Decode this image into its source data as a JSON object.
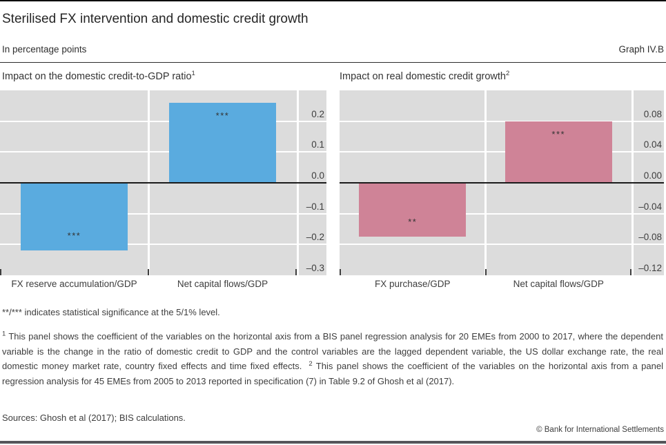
{
  "header": {
    "title": "Sterilised FX intervention and domestic credit growth",
    "unit": "In percentage points",
    "graph_label": "Graph IV.B"
  },
  "chart_data": [
    {
      "type": "bar",
      "title": "Impact on the domestic credit-to-GDP ratio",
      "title_sup": "1",
      "categories": [
        "FX reserve accumulation/GDP",
        "Net capital flows/GDP"
      ],
      "values": [
        -0.22,
        0.26
      ],
      "significance": [
        "***",
        "***"
      ],
      "bar_color": "#5aabdf",
      "ylim": [
        -0.3,
        0.3
      ],
      "yticks": [
        0.2,
        0.1,
        0.0,
        -0.1,
        -0.2,
        -0.3
      ],
      "ytick_labels": [
        "0.2",
        "0.1",
        "0.0",
        "–0.1",
        "–0.2",
        "–0.3"
      ],
      "grid": true,
      "legend_position": "none"
    },
    {
      "type": "bar",
      "title": "Impact on real domestic credit growth",
      "title_sup": "2",
      "categories": [
        "FX purchase/GDP",
        "Net capital flows/GDP"
      ],
      "values": [
        -0.07,
        0.08
      ],
      "significance": [
        "**",
        "***"
      ],
      "bar_color": "#cf8397",
      "ylim": [
        -0.12,
        0.12
      ],
      "yticks": [
        0.08,
        0.04,
        0.0,
        -0.04,
        -0.08,
        -0.12
      ],
      "ytick_labels": [
        "0.08",
        "0.04",
        "0.00",
        "–0.04",
        "–0.08",
        "–0.12"
      ],
      "grid": true,
      "legend_position": "none"
    }
  ],
  "notes": {
    "significance": "**/*** indicates statistical significance at the 5/1% level.",
    "footnote1_marker": "1",
    "footnote1_text": "This panel shows the coefficient of the variables on the horizontal axis from a BIS panel regression analysis for 20 EMEs from 2000 to 2017, where the dependent variable is the change in the ratio of domestic credit to GDP and the control variables are the lagged dependent variable, the US dollar exchange rate, the real domestic money market rate, country fixed effects and time fixed effects.",
    "footnote2_marker": "2",
    "footnote2_text": "This panel shows the coefficient of the variables on the horizontal axis from a panel regression analysis for 45 EMEs from 2005 to 2013 reported in specification (7) in Table 9.2 of Ghosh et al (2017).",
    "sources": "Sources: Ghosh et al (2017); BIS calculations."
  },
  "footer": {
    "copyright": "© Bank for International Settlements"
  },
  "colors": {
    "panel_background": "#dcdcdc",
    "blue_bar": "#5aabdf",
    "red_bar": "#cf8397",
    "zero_line": "#1a1a1a"
  }
}
